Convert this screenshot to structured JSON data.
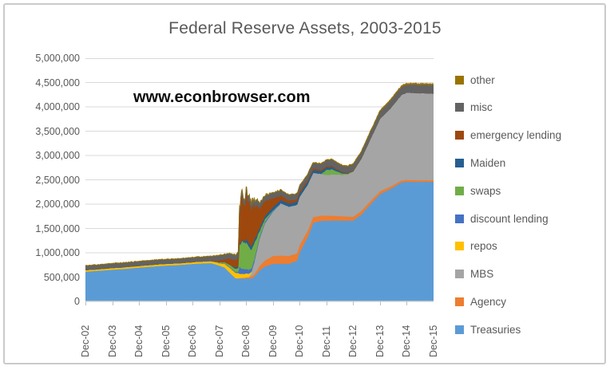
{
  "window": {
    "background": "#FFFFFF",
    "frame_border_color": "#CACACA"
  },
  "watermark": "www.econbrowser.com",
  "colors": {
    "title_text": "#595959",
    "tick_text": "#595959",
    "gridline": "#D9D9D9",
    "axis_line": "#BFBFBF",
    "watermark_text": "#0D0D0D"
  },
  "chart_data": {
    "type": "area",
    "stacked": true,
    "title": "Federal Reserve Assets, 2003-2015",
    "grid": "horizontal",
    "legend_position": "right",
    "legend_order": "top-to-bottom is reverse of stacking order",
    "ylim": [
      0,
      5000000
    ],
    "y_ticks": [
      {
        "value": 5000000,
        "label": "5,000,000"
      },
      {
        "value": 4500000,
        "label": "4,500,000"
      },
      {
        "value": 4000000,
        "label": "4,000,000"
      },
      {
        "value": 3500000,
        "label": "3,500,000"
      },
      {
        "value": 3000000,
        "label": "3,000,000"
      },
      {
        "value": 2500000,
        "label": "2,500,000"
      },
      {
        "value": 2000000,
        "label": "2,000,000"
      },
      {
        "value": 1500000,
        "label": "1,500,000"
      },
      {
        "value": 1000000,
        "label": "1,000,000"
      },
      {
        "value": 500000,
        "label": "500,000"
      },
      {
        "value": 0,
        "label": "0"
      }
    ],
    "x_tick_labels": [
      "Dec-02",
      "Dec-03",
      "Dec-04",
      "Dec-05",
      "Dec-06",
      "Dec-07",
      "Dec-08",
      "Dec-09",
      "Dec-10",
      "Dec-11",
      "Dec-12",
      "Dec-13",
      "Dec-14",
      "Dec-15"
    ],
    "x_unit": "years since Dec-2002 (weekly Fed balance-sheet data, values in $ millions)",
    "x": [
      0,
      0.5,
      1,
      1.5,
      2,
      2.5,
      3,
      3.5,
      4,
      4.5,
      4.7,
      5,
      5.2,
      5.4,
      5.6,
      5.7,
      5.75,
      5.85,
      5.95,
      6,
      6.1,
      6.2,
      6.3,
      6.5,
      6.7,
      7,
      7.3,
      7.6,
      7.9,
      8,
      8.3,
      8.5,
      8.8,
      9,
      9.2,
      9.4,
      9.6,
      9.8,
      10,
      10.3,
      10.6,
      11,
      11.4,
      11.8,
      12,
      12.5,
      13
    ],
    "series_bottom_to_top": [
      {
        "name": "Treasuries",
        "color": "#5B9BD5",
        "values": [
          615000,
          635000,
          655000,
          675000,
          700000,
          720000,
          740000,
          755000,
          775000,
          788000,
          790000,
          740000,
          700000,
          590000,
          480000,
          476000,
          476000,
          476000,
          476000,
          476000,
          475000,
          478000,
          510000,
          640000,
          720000,
          776000,
          777000,
          777000,
          840000,
          1016000,
          1330000,
          1617000,
          1660000,
          1663000,
          1663000,
          1665000,
          1665000,
          1665000,
          1666000,
          1790000,
          1975000,
          2209000,
          2320000,
          2450000,
          2461000,
          2461000,
          2461000
        ]
      },
      {
        "name": "Agency",
        "color": "#ED7D31",
        "values": [
          0,
          0,
          0,
          0,
          0,
          0,
          0,
          0,
          0,
          0,
          0,
          0,
          0,
          0,
          0,
          0,
          5000,
          10000,
          15000,
          20000,
          25000,
          38000,
          50000,
          90000,
          125000,
          160000,
          169000,
          160000,
          150000,
          147000,
          130000,
          118000,
          108000,
          104000,
          100000,
          95000,
          90000,
          83000,
          77000,
          72000,
          65000,
          57000,
          48000,
          40000,
          39000,
          35000,
          32000
        ]
      },
      {
        "name": "MBS",
        "color": "#A5A5A5",
        "values": [
          0,
          0,
          0,
          0,
          0,
          0,
          0,
          0,
          0,
          0,
          0,
          0,
          0,
          0,
          0,
          0,
          0,
          0,
          0,
          0,
          5000,
          70000,
          240000,
          560000,
          760000,
          910000,
          1070000,
          1010000,
          995000,
          992000,
          945000,
          909000,
          855000,
          837000,
          848000,
          852000,
          850000,
          870000,
          927000,
          1070000,
          1250000,
          1490000,
          1610000,
          1760000,
          1795000,
          1790000,
          1780000
        ]
      },
      {
        "name": "repos",
        "color": "#FFC000",
        "values": [
          32000,
          30000,
          33000,
          32000,
          33000,
          34000,
          34000,
          33000,
          35000,
          38000,
          40000,
          46000,
          75000,
          100000,
          110000,
          110000,
          90000,
          80000,
          80000,
          80000,
          70000,
          25000,
          0,
          0,
          0,
          0,
          0,
          0,
          0,
          0,
          0,
          0,
          0,
          0,
          0,
          0,
          0,
          0,
          0,
          0,
          0,
          0,
          0,
          0,
          0,
          0,
          0
        ]
      },
      {
        "name": "discount lending",
        "color": "#4472C4",
        "values": [
          0,
          0,
          0,
          0,
          0,
          0,
          0,
          0,
          0,
          0,
          2000,
          6000,
          10000,
          14000,
          17000,
          25000,
          140000,
          110000,
          95000,
          90000,
          85000,
          70000,
          65000,
          42000,
          30000,
          20000,
          8000,
          2000,
          0,
          0,
          0,
          0,
          0,
          0,
          0,
          0,
          0,
          0,
          0,
          0,
          0,
          0,
          0,
          0,
          0,
          0,
          0
        ]
      },
      {
        "name": "swaps",
        "color": "#70AD47",
        "values": [
          0,
          0,
          0,
          0,
          0,
          0,
          0,
          0,
          0,
          0,
          0,
          14000,
          25000,
          50000,
          62000,
          80000,
          430000,
          560000,
          540000,
          553000,
          465000,
          375000,
          330000,
          115000,
          60000,
          10000,
          0,
          0,
          0,
          0,
          0,
          0,
          2000,
          100000,
          108000,
          60000,
          27000,
          12000,
          9000,
          3000,
          0,
          0,
          0,
          0,
          0,
          0,
          0
        ]
      },
      {
        "name": "Maiden",
        "color": "#255E91",
        "values": [
          0,
          0,
          0,
          0,
          0,
          0,
          0,
          0,
          0,
          0,
          0,
          0,
          0,
          0,
          29000,
          29000,
          29000,
          29000,
          30000,
          74000,
          72000,
          72000,
          72000,
          62000,
          62000,
          65000,
          65000,
          63000,
          66000,
          66000,
          62000,
          60000,
          55000,
          52000,
          49000,
          35000,
          18000,
          8000,
          1000,
          0,
          0,
          0,
          0,
          0,
          0,
          0,
          0
        ]
      },
      {
        "name": "emergency lending",
        "color": "#9E480E",
        "values": [
          0,
          0,
          0,
          0,
          0,
          0,
          0,
          0,
          0,
          0,
          0,
          40000,
          60000,
          130000,
          150000,
          180000,
          620000,
          930000,
          700000,
          890000,
          870000,
          800000,
          700000,
          440000,
          320000,
          170000,
          95000,
          62000,
          48000,
          45000,
          35000,
          30000,
          27000,
          25000,
          22000,
          18000,
          15000,
          12000,
          10000,
          7000,
          5000,
          3000,
          2000,
          1000,
          0,
          0,
          0
        ]
      },
      {
        "name": "misc",
        "color": "#636363",
        "values": [
          88000,
          88000,
          89000,
          89000,
          90000,
          90000,
          89000,
          90000,
          92000,
          95000,
          96000,
          98000,
          98000,
          99000,
          100000,
          102000,
          104000,
          105000,
          105000,
          106000,
          105000,
          105000,
          105000,
          105000,
          105000,
          108000,
          108000,
          108000,
          110000,
          110000,
          113000,
          115000,
          118000,
          120000,
          122000,
          124000,
          125000,
          128000,
          130000,
          135000,
          140000,
          150000,
          158000,
          165000,
          168000,
          172000,
          175000
        ]
      },
      {
        "name": "other",
        "color": "#997300",
        "values": [
          7000,
          7000,
          7000,
          7000,
          7000,
          7000,
          7000,
          7000,
          8000,
          8000,
          8000,
          8000,
          8000,
          8000,
          8000,
          8000,
          8000,
          8000,
          8000,
          8000,
          8000,
          8000,
          8000,
          8000,
          9000,
          9000,
          9000,
          9000,
          10000,
          10000,
          11000,
          12000,
          12000,
          12000,
          13000,
          13000,
          14000,
          14000,
          15000,
          16000,
          18000,
          20000,
          22000,
          24000,
          24000,
          25000,
          25000
        ]
      }
    ]
  }
}
